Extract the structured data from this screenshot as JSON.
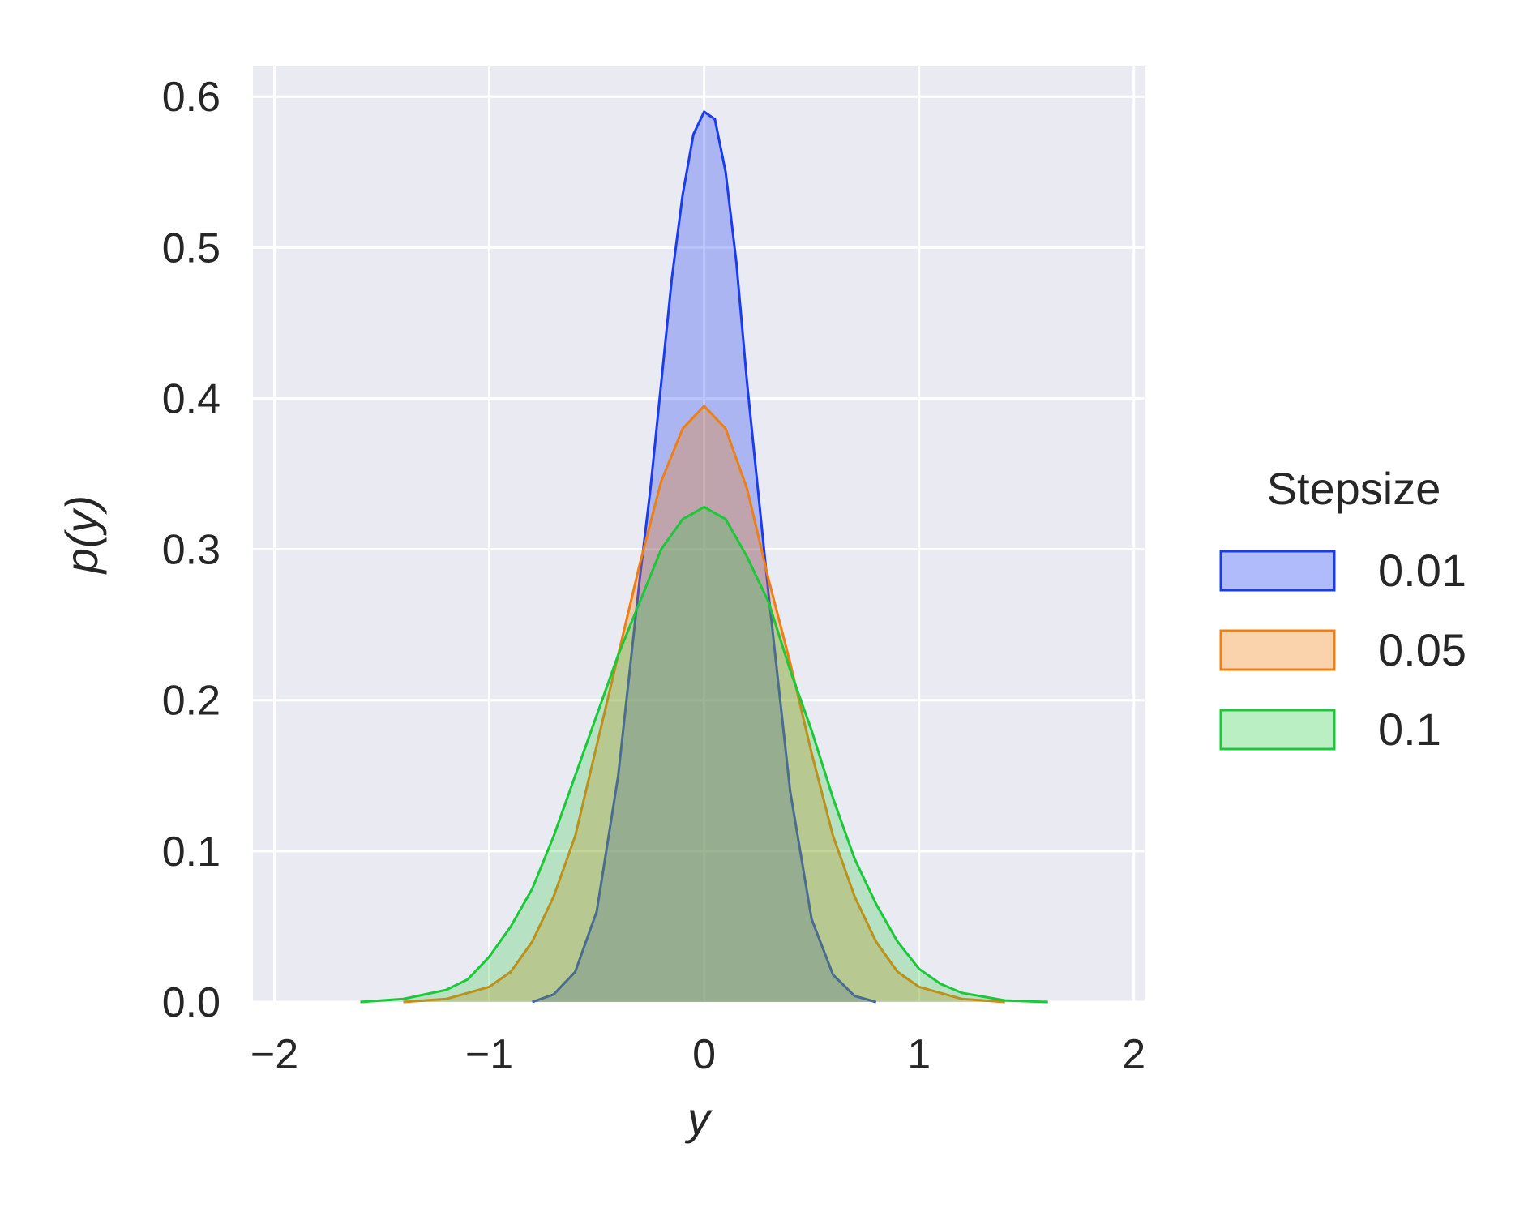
{
  "chart_data": {
    "type": "area",
    "xlabel": "y",
    "ylabel": "p(y)",
    "xlim": [
      -2.1,
      2.05
    ],
    "ylim": [
      0,
      0.62
    ],
    "xticks": [
      -2,
      -1,
      0,
      1,
      2
    ],
    "xtick_labels": [
      "−2",
      "−1",
      "0",
      "1",
      "2"
    ],
    "yticks": [
      0.0,
      0.1,
      0.2,
      0.3,
      0.4,
      0.5,
      0.6
    ],
    "ytick_labels": [
      "0.0",
      "0.1",
      "0.2",
      "0.3",
      "0.4",
      "0.5",
      "0.6"
    ],
    "grid": true,
    "background": "#eaeaf2",
    "legend": {
      "title": "Stepsize",
      "placement": "right"
    },
    "series": [
      {
        "name": "0.01",
        "color": "#1a3cf0",
        "fill_opacity": 0.3,
        "x": [
          -0.8,
          -0.7,
          -0.6,
          -0.5,
          -0.4,
          -0.3,
          -0.25,
          -0.2,
          -0.15,
          -0.1,
          -0.05,
          0.0,
          0.05,
          0.1,
          0.15,
          0.2,
          0.25,
          0.3,
          0.4,
          0.5,
          0.6,
          0.7,
          0.8
        ],
        "y": [
          0.0,
          0.005,
          0.02,
          0.06,
          0.15,
          0.28,
          0.34,
          0.41,
          0.48,
          0.535,
          0.575,
          0.59,
          0.585,
          0.55,
          0.49,
          0.41,
          0.34,
          0.27,
          0.14,
          0.055,
          0.018,
          0.004,
          0.0
        ]
      },
      {
        "name": "0.05",
        "color": "#f07f12",
        "fill_opacity": 0.3,
        "x": [
          -1.4,
          -1.2,
          -1.0,
          -0.9,
          -0.8,
          -0.7,
          -0.6,
          -0.5,
          -0.4,
          -0.3,
          -0.2,
          -0.1,
          0.0,
          0.1,
          0.2,
          0.3,
          0.4,
          0.5,
          0.6,
          0.7,
          0.8,
          0.9,
          1.0,
          1.2,
          1.4
        ],
        "y": [
          0.0,
          0.002,
          0.01,
          0.02,
          0.04,
          0.07,
          0.11,
          0.17,
          0.23,
          0.29,
          0.345,
          0.38,
          0.395,
          0.38,
          0.34,
          0.28,
          0.225,
          0.165,
          0.11,
          0.07,
          0.04,
          0.02,
          0.01,
          0.002,
          0.0
        ]
      },
      {
        "name": "0.1",
        "color": "#1ac938",
        "fill_opacity": 0.25,
        "x": [
          -1.6,
          -1.4,
          -1.2,
          -1.1,
          -1.0,
          -0.9,
          -0.8,
          -0.7,
          -0.6,
          -0.5,
          -0.4,
          -0.3,
          -0.2,
          -0.1,
          0.0,
          0.1,
          0.2,
          0.3,
          0.4,
          0.5,
          0.6,
          0.7,
          0.8,
          0.9,
          1.0,
          1.1,
          1.2,
          1.4,
          1.6
        ],
        "y": [
          0.0,
          0.002,
          0.008,
          0.015,
          0.03,
          0.05,
          0.075,
          0.11,
          0.15,
          0.19,
          0.23,
          0.265,
          0.3,
          0.32,
          0.328,
          0.32,
          0.295,
          0.265,
          0.22,
          0.18,
          0.135,
          0.095,
          0.065,
          0.04,
          0.022,
          0.012,
          0.006,
          0.001,
          0.0
        ]
      }
    ]
  }
}
